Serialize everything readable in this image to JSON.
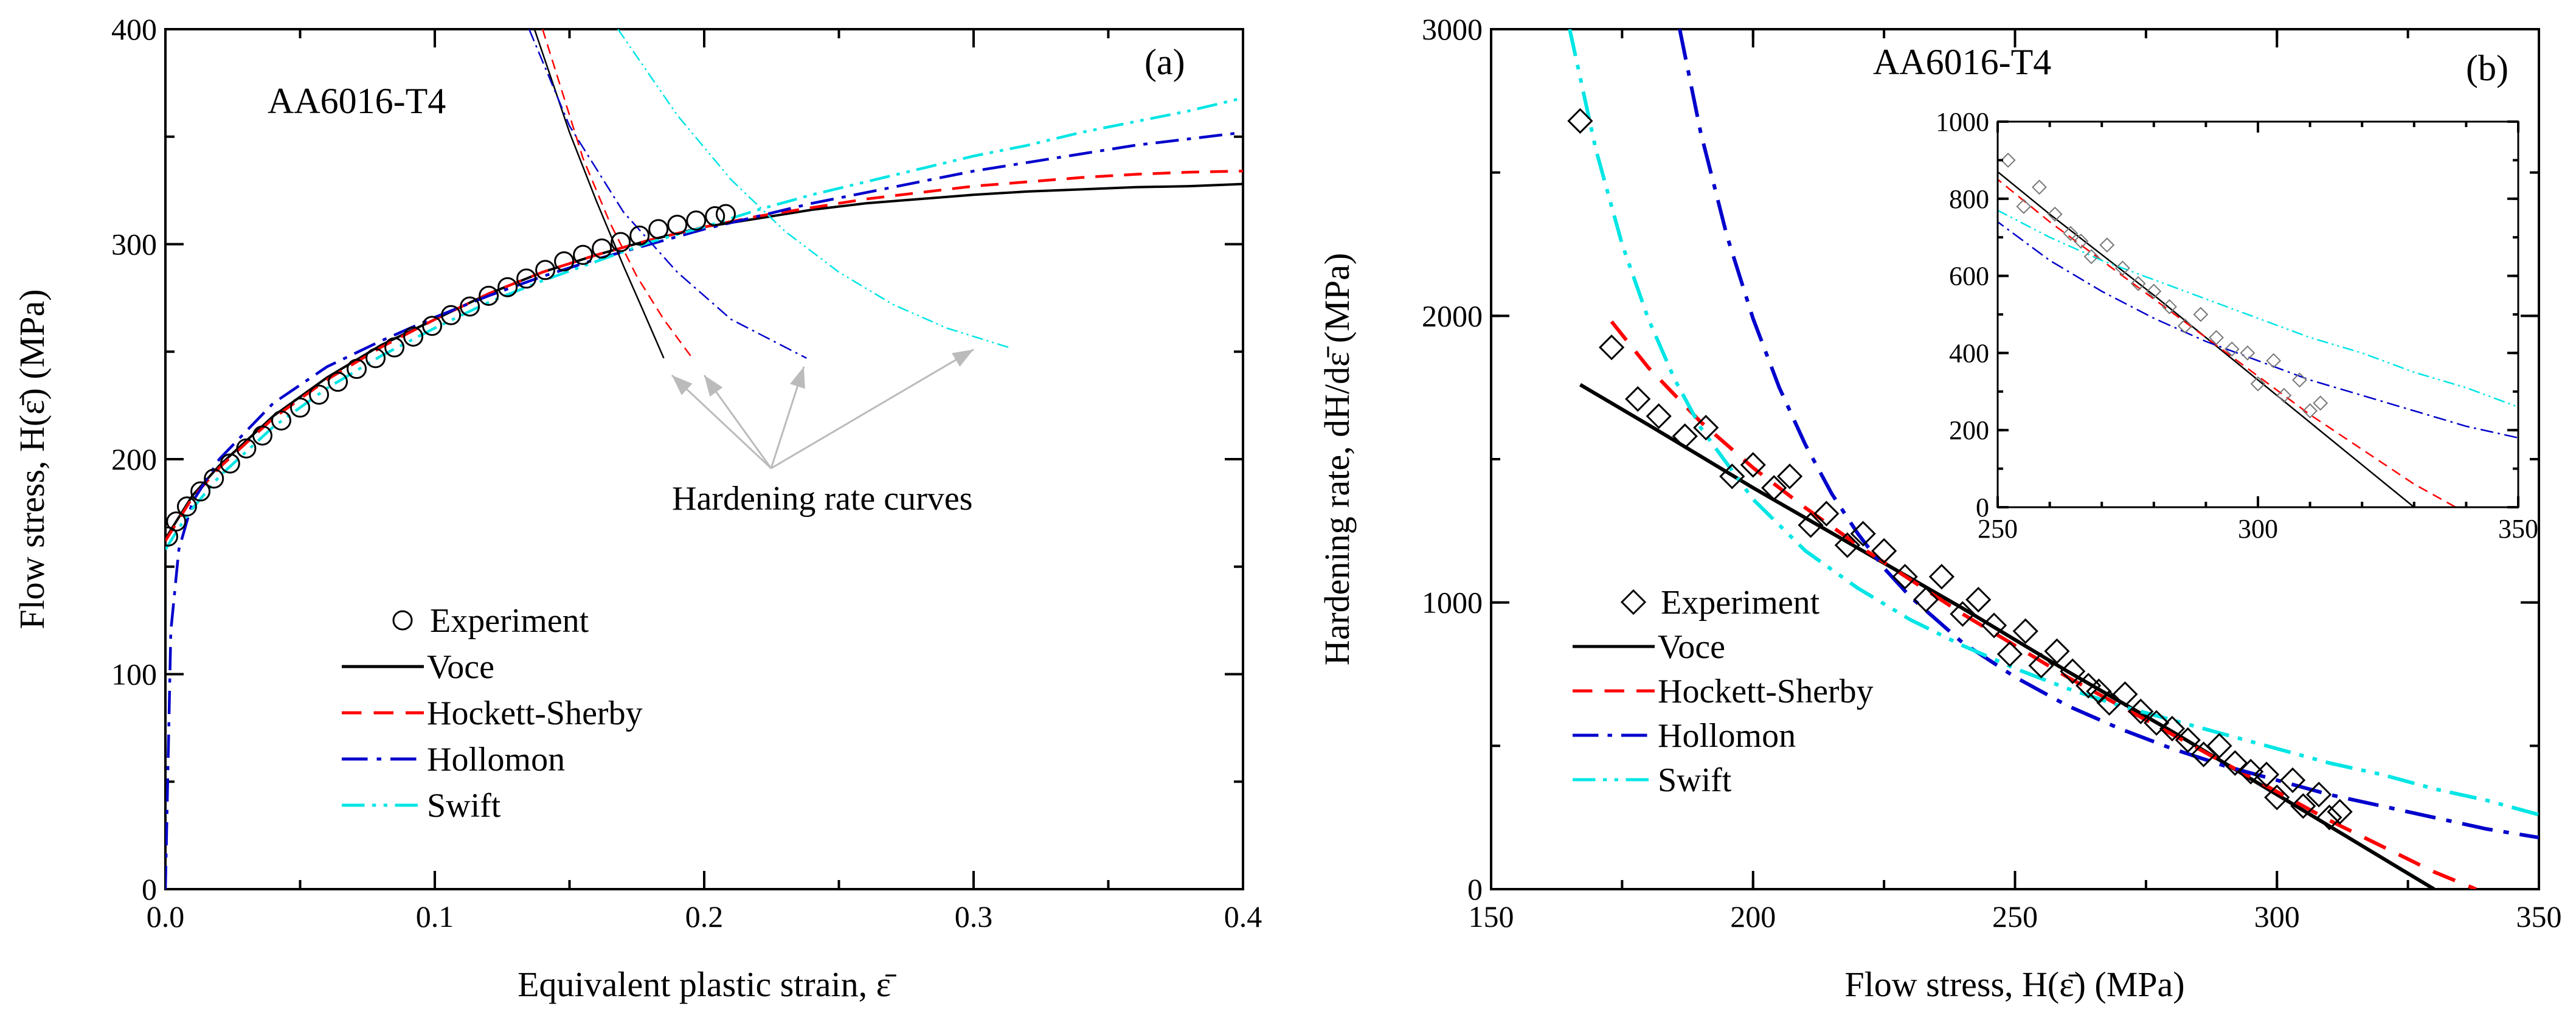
{
  "chart_data": [
    {
      "type": "line",
      "panel_label": "(a)",
      "title": "AA6016-T4",
      "xlabel": "Equivalent plastic strain, ε̄",
      "ylabel": "Flow stress, H(ε̄) (MPa)",
      "xlim": [
        0.0,
        0.4
      ],
      "ylim": [
        0,
        400
      ],
      "xticks": [
        "0.0",
        "0.1",
        "0.2",
        "0.3",
        "0.4"
      ],
      "yticks": [
        "0",
        "100",
        "200",
        "300",
        "400"
      ],
      "annotation": "Hardening rate curves",
      "legend_position": "lower-left",
      "experiment": {
        "name": "Experiment",
        "x": [
          0.001,
          0.004,
          0.008,
          0.013,
          0.018,
          0.024,
          0.03,
          0.036,
          0.043,
          0.05,
          0.057,
          0.064,
          0.071,
          0.078,
          0.085,
          0.092,
          0.099,
          0.106,
          0.113,
          0.12,
          0.127,
          0.134,
          0.141,
          0.148,
          0.155,
          0.162,
          0.169,
          0.176,
          0.183,
          0.19,
          0.197,
          0.204,
          0.208
        ],
        "y": [
          164,
          171,
          178,
          185,
          191,
          198,
          205,
          211,
          218,
          224,
          230,
          236,
          242,
          247,
          252,
          257,
          262,
          267,
          271,
          276,
          280,
          284,
          288,
          292,
          295,
          298,
          301,
          304,
          307,
          309,
          311,
          313,
          314
        ]
      },
      "series": [
        {
          "name": "Voce",
          "color": "#000000",
          "dash": "solid",
          "x": [
            0.0,
            0.01,
            0.02,
            0.04,
            0.06,
            0.08,
            0.1,
            0.12,
            0.14,
            0.16,
            0.18,
            0.2,
            0.22,
            0.24,
            0.26,
            0.28,
            0.3,
            0.32,
            0.34,
            0.36,
            0.38,
            0.4
          ],
          "y": [
            163,
            183,
            197,
            220,
            238,
            253,
            265,
            277,
            287,
            295,
            302,
            308,
            312,
            316,
            319,
            321,
            323,
            324.5,
            325.5,
            326.5,
            327,
            328
          ]
        },
        {
          "name": "Hockett-Sherby",
          "color": "#ff0000",
          "dash": "dashed",
          "x": [
            0.0,
            0.01,
            0.02,
            0.04,
            0.06,
            0.08,
            0.1,
            0.12,
            0.14,
            0.16,
            0.18,
            0.2,
            0.22,
            0.24,
            0.26,
            0.28,
            0.3,
            0.32,
            0.34,
            0.36,
            0.38,
            0.4
          ],
          "y": [
            162,
            182,
            196,
            219,
            237,
            252,
            265,
            277,
            287,
            295,
            302,
            308,
            313,
            317,
            321,
            324,
            327,
            329,
            331,
            332.5,
            333.5,
            334
          ]
        },
        {
          "name": "Hollomon",
          "color": "#0000cc",
          "dash": "dashdot",
          "x": [
            0.0,
            0.002,
            0.005,
            0.01,
            0.02,
            0.04,
            0.06,
            0.08,
            0.1,
            0.12,
            0.14,
            0.16,
            0.18,
            0.2,
            0.22,
            0.24,
            0.26,
            0.28,
            0.3,
            0.32,
            0.34,
            0.36,
            0.38,
            0.4
          ],
          "y": [
            0,
            120,
            158,
            180,
            200,
            226,
            243,
            255,
            266,
            276,
            285,
            293,
            300,
            307,
            313,
            319,
            324,
            329,
            334,
            338,
            342,
            346,
            349,
            352
          ]
        },
        {
          "name": "Swift",
          "color": "#00e5e5",
          "dash": "dashdotdot",
          "x": [
            0.0,
            0.005,
            0.01,
            0.02,
            0.04,
            0.06,
            0.08,
            0.1,
            0.12,
            0.14,
            0.16,
            0.18,
            0.2,
            0.22,
            0.24,
            0.26,
            0.28,
            0.3,
            0.32,
            0.34,
            0.36,
            0.38,
            0.4
          ],
          "y": [
            158,
            168,
            177,
            192,
            215,
            233,
            248,
            261,
            273,
            283,
            292,
            301,
            308,
            316,
            323,
            329,
            335,
            341,
            346,
            352,
            357,
            362,
            368
          ]
        }
      ],
      "hardening_rate_curves": [
        {
          "name": "Voce",
          "color": "#000000",
          "dash": "solid",
          "x": [
            0.137,
            0.15,
            0.16,
            0.17,
            0.177,
            0.185
          ],
          "y": [
            400,
            352,
            320,
            290,
            270,
            247
          ]
        },
        {
          "name": "Hockett-Sherby",
          "color": "#ff0000",
          "dash": "dashed",
          "x": [
            0.14,
            0.155,
            0.165,
            0.175,
            0.185,
            0.195
          ],
          "y": [
            400,
            340,
            310,
            285,
            265,
            248
          ]
        },
        {
          "name": "Hollomon",
          "color": "#0000cc",
          "dash": "dashdot",
          "x": [
            0.135,
            0.15,
            0.17,
            0.19,
            0.21,
            0.238
          ],
          "y": [
            400,
            355,
            315,
            287,
            265,
            247
          ]
        },
        {
          "name": "Swift",
          "color": "#00e5e5",
          "dash": "dashdotdot",
          "x": [
            0.168,
            0.19,
            0.21,
            0.23,
            0.25,
            0.27,
            0.29,
            0.313
          ],
          "y": [
            400,
            360,
            330,
            306,
            287,
            272,
            261,
            252
          ]
        }
      ],
      "arrow_tips": {
        "x": [
          0.188,
          0.2,
          0.237,
          0.3
        ],
        "y": [
          243,
          243,
          247,
          255
        ]
      }
    },
    {
      "type": "scatter",
      "panel_label": "(b)",
      "title": "AA6016-T4",
      "xlabel": "Flow stress, H(ε̄) (MPa)",
      "ylabel": "Hardening rate, dH/dε̄ (MPa)",
      "xlim": [
        150,
        350
      ],
      "ylim": [
        0,
        3000
      ],
      "xticks": [
        "150",
        "200",
        "250",
        "300",
        "350"
      ],
      "yticks": [
        "0",
        "1000",
        "2000",
        "3000"
      ],
      "legend_position": "lower-left",
      "experiment": {
        "name": "Experiment",
        "x": [
          167,
          173,
          178,
          182,
          187,
          191,
          196,
          200,
          204,
          207,
          211,
          214,
          218,
          221,
          225,
          229,
          233,
          236,
          240,
          243,
          246,
          249,
          252,
          255,
          258,
          261,
          264,
          266,
          268,
          271,
          274,
          277,
          280,
          283,
          286,
          289,
          292,
          295,
          298,
          300,
          303,
          305,
          308,
          310,
          312
        ],
        "y": [
          2680,
          1890,
          1710,
          1650,
          1580,
          1610,
          1440,
          1480,
          1400,
          1440,
          1270,
          1310,
          1200,
          1240,
          1180,
          1090,
          1010,
          1090,
          960,
          1010,
          920,
          820,
          900,
          780,
          830,
          760,
          710,
          690,
          650,
          680,
          620,
          580,
          560,
          520,
          470,
          500,
          440,
          410,
          400,
          320,
          380,
          290,
          330,
          250,
          270
        ]
      },
      "series": [
        {
          "name": "Voce",
          "color": "#000000",
          "dash": "solid",
          "x": [
            167,
            180,
            200,
            220,
            240,
            260,
            280,
            300,
            320,
            330
          ],
          "y": [
            1760,
            1620,
            1400,
            1190,
            980,
            760,
            550,
            330,
            110,
            0
          ]
        },
        {
          "name": "Hockett-Sherby",
          "color": "#ff0000",
          "dash": "dashed",
          "x": [
            173,
            180,
            190,
            200,
            210,
            220,
            230,
            240,
            250,
            260,
            270,
            280,
            290,
            300,
            310,
            320,
            330,
            338
          ],
          "y": [
            1980,
            1820,
            1630,
            1470,
            1330,
            1200,
            1080,
            960,
            850,
            740,
            640,
            540,
            440,
            340,
            240,
            150,
            60,
            0
          ]
        },
        {
          "name": "Hollomon",
          "color": "#0000cc",
          "dash": "dashdot",
          "x": [
            186,
            190,
            195,
            200,
            205,
            210,
            215,
            220,
            225,
            230,
            240,
            250,
            260,
            270,
            280,
            290,
            300,
            310,
            320,
            330,
            340,
            350
          ],
          "y": [
            3000,
            2640,
            2280,
            1990,
            1750,
            1550,
            1380,
            1240,
            1120,
            1020,
            860,
            740,
            640,
            560,
            490,
            430,
            380,
            330,
            290,
            250,
            210,
            180
          ]
        },
        {
          "name": "Swift",
          "color": "#00e5e5",
          "dash": "dashdotdot",
          "x": [
            165,
            170,
            175,
            180,
            185,
            190,
            200,
            210,
            220,
            230,
            240,
            250,
            260,
            270,
            280,
            290,
            300,
            310,
            320,
            330,
            340,
            350
          ],
          "y": [
            3000,
            2580,
            2250,
            1990,
            1780,
            1610,
            1360,
            1180,
            1050,
            940,
            850,
            770,
            700,
            640,
            590,
            540,
            490,
            440,
            400,
            350,
            310,
            260
          ]
        }
      ],
      "inset": {
        "xlim": [
          250,
          350
        ],
        "ylim": [
          0,
          1000
        ],
        "xticks": [
          "250",
          "300",
          "350"
        ],
        "yticks": [
          "0",
          "200",
          "400",
          "600",
          "800",
          "1000"
        ]
      }
    }
  ]
}
